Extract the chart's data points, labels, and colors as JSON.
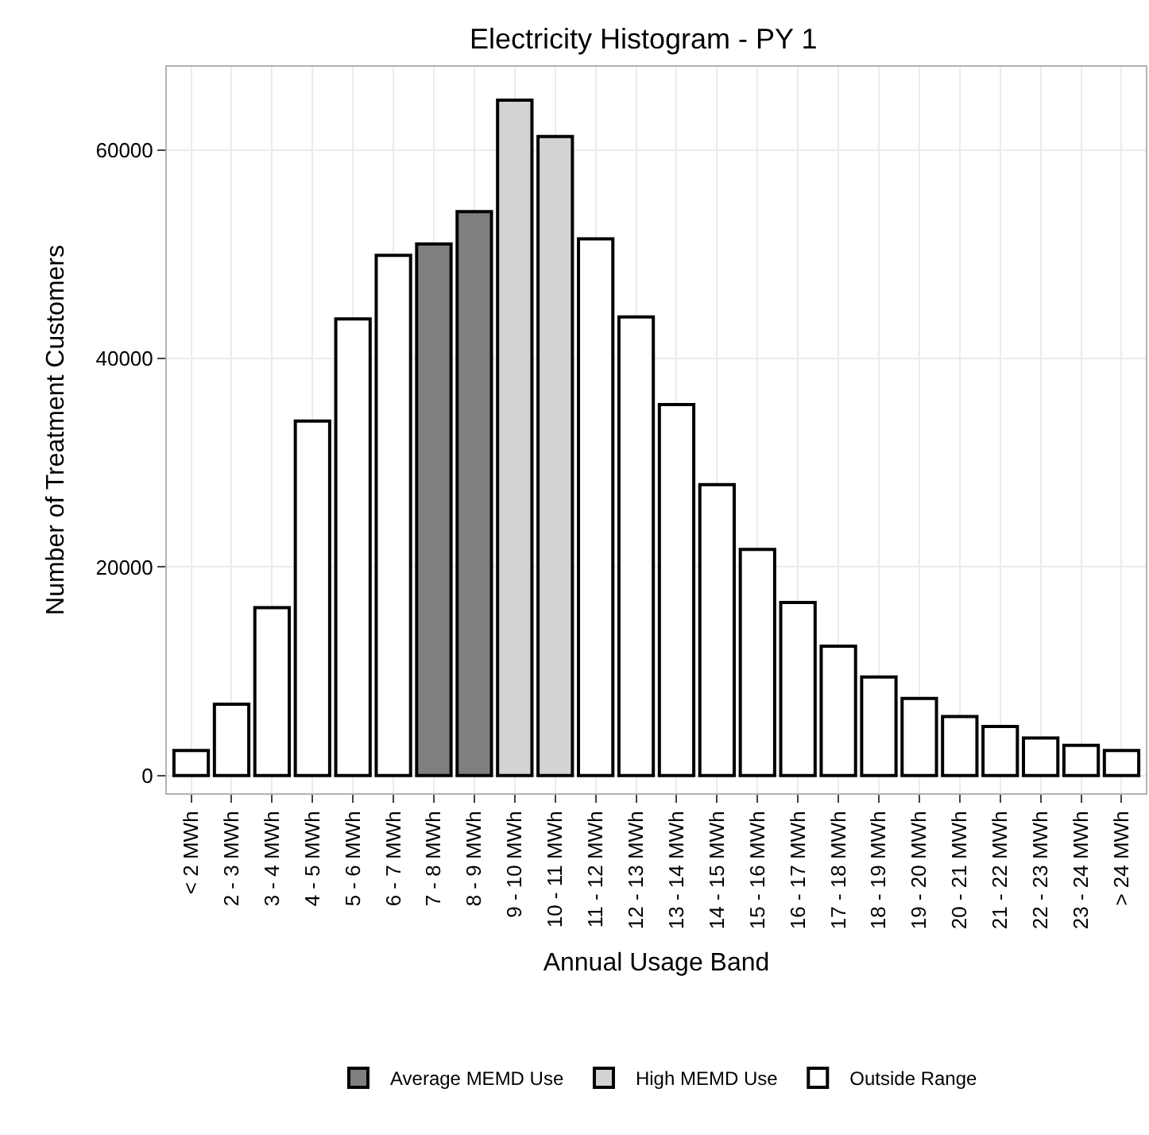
{
  "chart_data": {
    "type": "bar",
    "title": "Electricity Histogram - PY 1",
    "xlabel": "Annual Usage Band",
    "ylabel": "Number of Treatment Customers",
    "categories": [
      "< 2 MWh",
      "2 - 3 MWh",
      "3 - 4 MWh",
      "4 - 5 MWh",
      "5 - 6 MWh",
      "6 - 7 MWh",
      "7 - 8 MWh",
      "8 - 9 MWh",
      "9 - 10 MWh",
      "10 - 11 MWh",
      "11 - 12 MWh",
      "12 - 13 MWh",
      "13 - 14 MWh",
      "14 - 15 MWh",
      "15 - 16 MWh",
      "16 - 17 MWh",
      "17 - 18 MWh",
      "18 - 19 MWh",
      "19 - 20 MWh",
      "20 - 21 MWh",
      "21 - 22 MWh",
      "22 - 23 MWh",
      "23 - 24 MWh",
      "> 24 MWh"
    ],
    "series": [
      {
        "name": "Average MEMD Use",
        "color": "#7f7f7f",
        "values": [
          null,
          null,
          null,
          null,
          null,
          null,
          51000,
          54100,
          null,
          null,
          null,
          null,
          null,
          null,
          null,
          null,
          null,
          null,
          null,
          null,
          null,
          null,
          null,
          null
        ]
      },
      {
        "name": "High MEMD Use",
        "color": "#d3d3d3",
        "values": [
          null,
          null,
          null,
          null,
          null,
          null,
          null,
          null,
          64800,
          61300,
          null,
          null,
          null,
          null,
          null,
          null,
          null,
          null,
          null,
          null,
          null,
          null,
          null,
          null
        ]
      },
      {
        "name": "Outside Range",
        "color": "#ffffff",
        "values": [
          2400,
          6850,
          16100,
          34000,
          43800,
          49900,
          null,
          null,
          null,
          null,
          51500,
          44000,
          35600,
          27900,
          21700,
          16600,
          12400,
          9450,
          7400,
          5650,
          4700,
          3600,
          2900,
          2400
        ]
      }
    ],
    "ylim": [
      -1700,
      68000
    ],
    "yticks": [
      0,
      20000,
      40000,
      60000
    ],
    "grid": true,
    "legend": "bottom"
  }
}
